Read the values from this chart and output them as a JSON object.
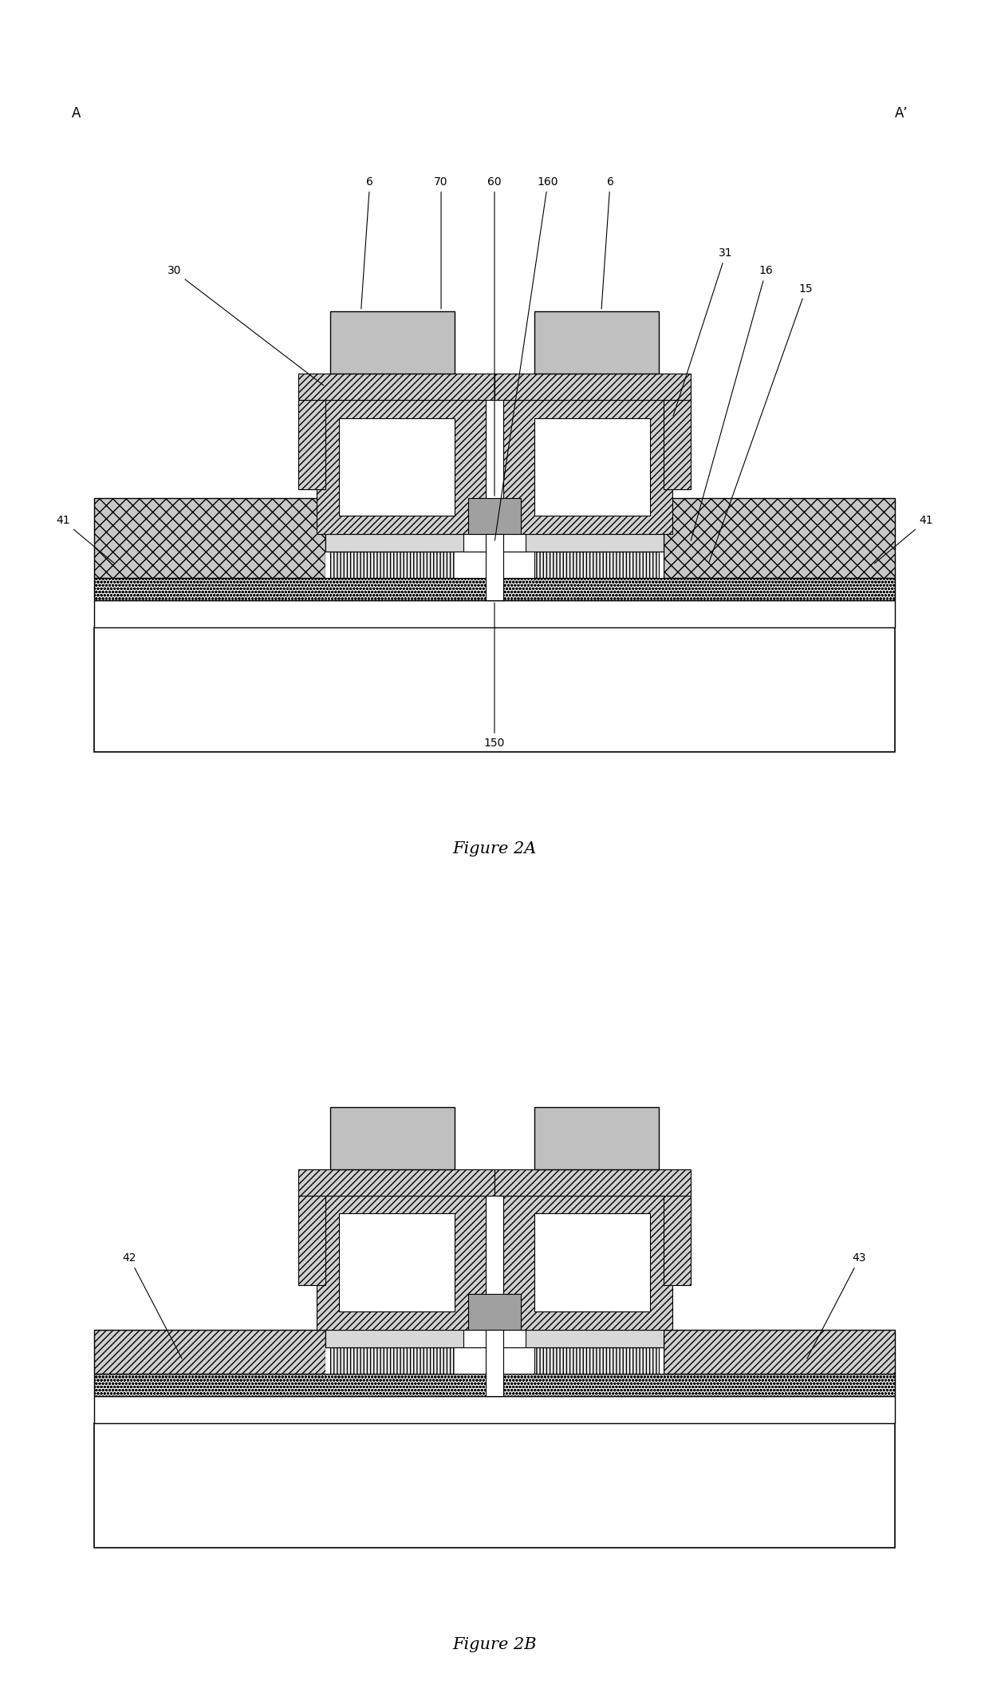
{
  "fig_width": 12.4,
  "fig_height": 21.21,
  "bg_color": "#ffffff",
  "gray_light": "#d0d0d0",
  "gray_medium": "#b0b0b0",
  "gray_cross": "#c0c0c0",
  "fig2a_title": "Figure 2A",
  "fig2b_title": "Figure 2B",
  "label_A": "A",
  "label_Aprime": "A’"
}
